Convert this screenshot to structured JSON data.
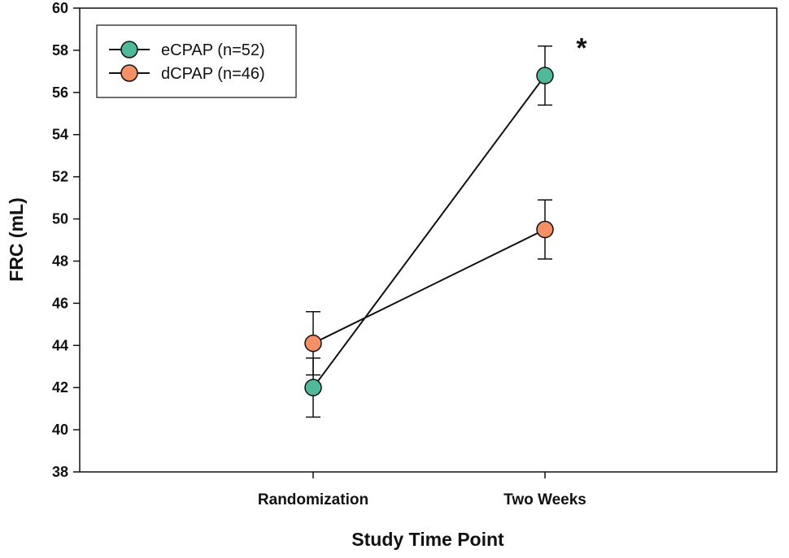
{
  "chart_data": {
    "type": "line",
    "title": "",
    "xlabel": "Study Time Point",
    "ylabel": "FRC (mL)",
    "categories": [
      "Randomization",
      "Two Weeks"
    ],
    "ylim": [
      38,
      60
    ],
    "yticks": [
      38,
      40,
      42,
      44,
      46,
      48,
      50,
      52,
      54,
      56,
      58,
      60
    ],
    "grid": false,
    "legend_position": "top-left",
    "series": [
      {
        "name": "eCPAP (n=52)",
        "values": [
          42.0,
          56.8
        ],
        "error": [
          1.4,
          1.4
        ],
        "color": "#4fb99a"
      },
      {
        "name": "dCPAP (n=46)",
        "values": [
          44.1,
          49.5
        ],
        "error": [
          1.5,
          1.4
        ],
        "color": "#f58f66"
      }
    ],
    "annotations": [
      {
        "text": "*",
        "category": "Two Weeks",
        "y": 58.2
      }
    ]
  }
}
